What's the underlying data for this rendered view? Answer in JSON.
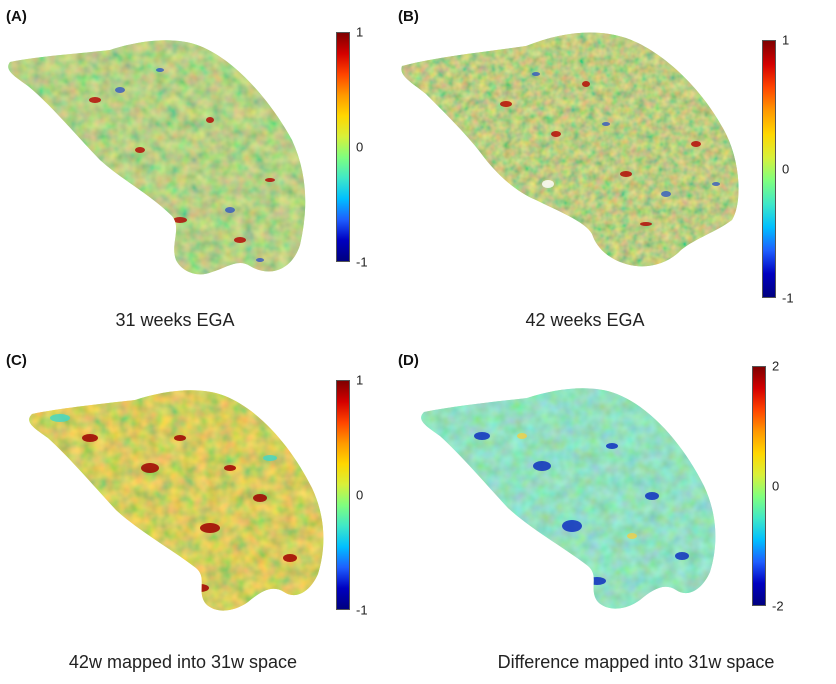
{
  "panels": [
    {
      "letter": "(A)",
      "caption": "31 weeks EGA",
      "colorbar": {
        "max": "1",
        "mid": "0",
        "min": "-1"
      }
    },
    {
      "letter": "(B)",
      "caption": "42 weeks EGA",
      "colorbar": {
        "max": "1",
        "mid": "0",
        "min": "-1"
      }
    },
    {
      "letter": "(C)",
      "caption": "42w mapped into 31w space",
      "colorbar": {
        "max": "1",
        "mid": "0",
        "min": "-1"
      }
    },
    {
      "letter": "(D)",
      "caption": "Difference mapped into 31w space",
      "colorbar": {
        "max": "2",
        "mid": "0",
        "min": "-2"
      }
    }
  ],
  "colormap": [
    "#7f0000",
    "#d40000",
    "#ff4500",
    "#ff9900",
    "#ffd700",
    "#d8f03a",
    "#7fff7f",
    "#3fe8c8",
    "#00bfff",
    "#1e5fff",
    "#0000c0",
    "#00007f"
  ]
}
